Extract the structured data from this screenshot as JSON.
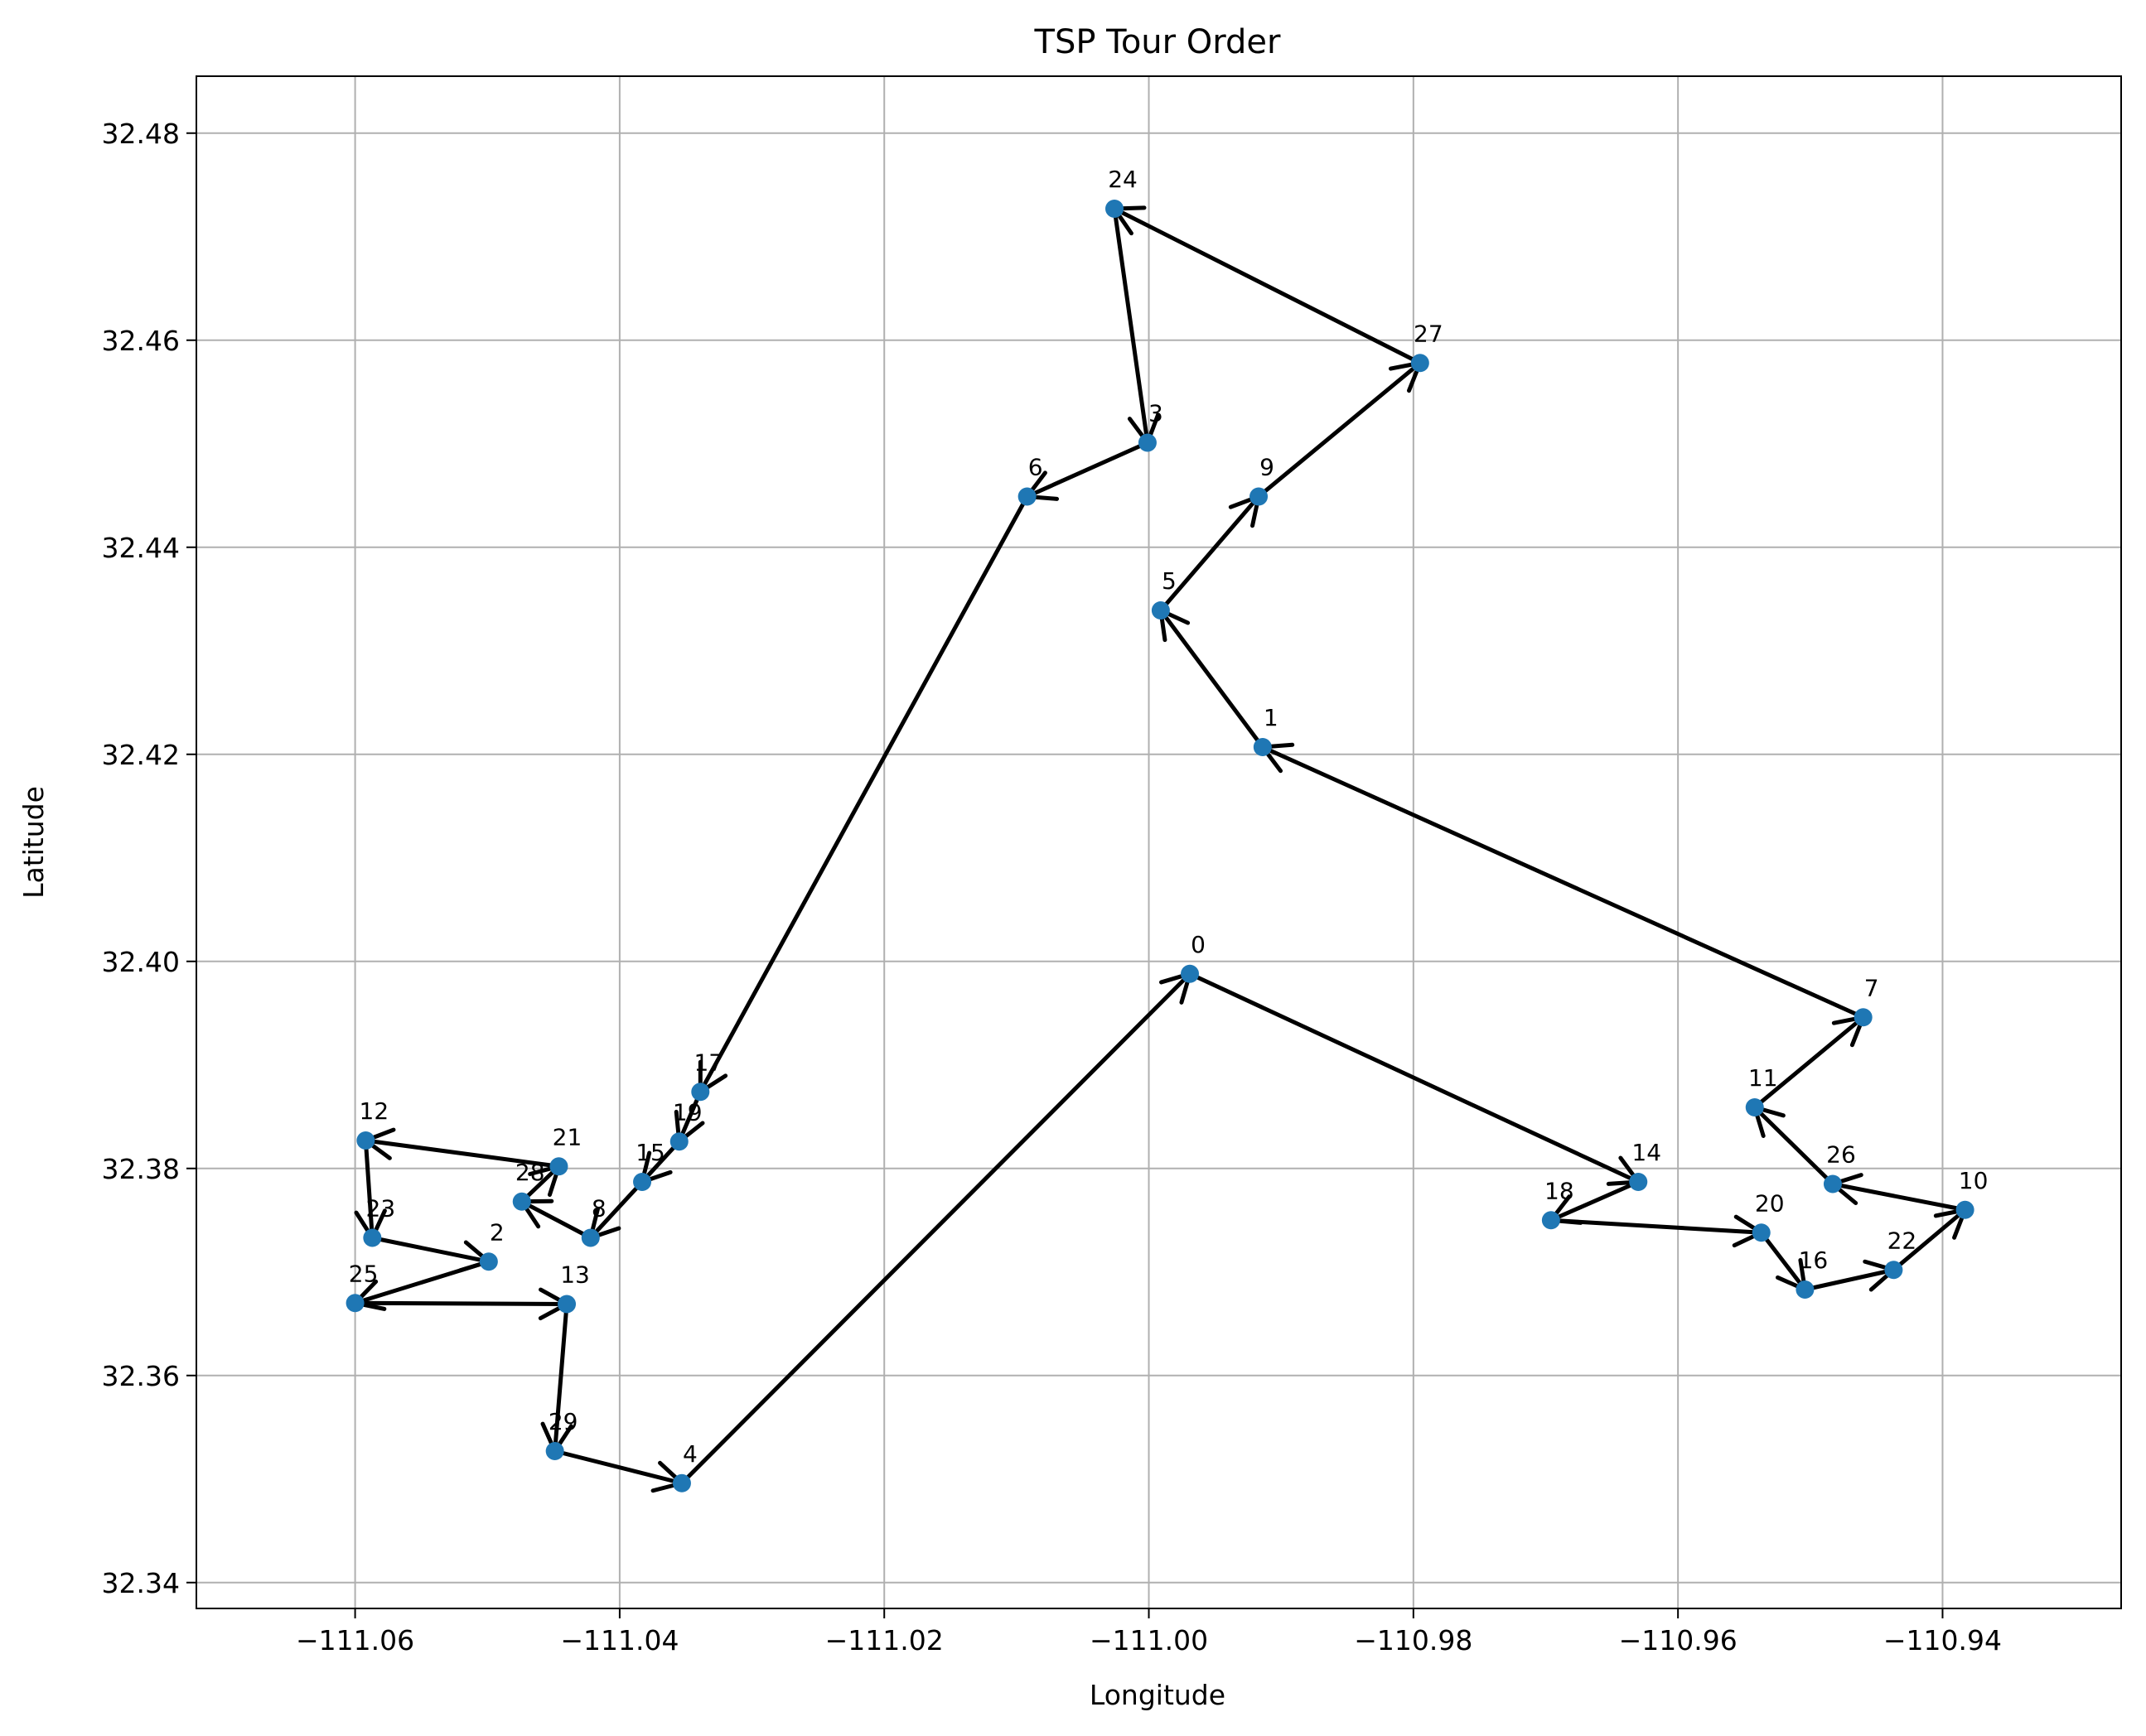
{
  "chart_data": {
    "type": "scatter",
    "title": "TSP Tour Order",
    "xlabel": "Longitude",
    "ylabel": "Latitude",
    "xlim": [
      -111.072,
      -110.9265
    ],
    "ylim": [
      32.3375,
      32.4855
    ],
    "xticks": [
      -111.06,
      -111.04,
      -111.02,
      -111.0,
      -110.98,
      -110.96,
      -110.94
    ],
    "xtick_labels": [
      "−111.06",
      "−111.04",
      "−111.02",
      "−111.00",
      "−110.98",
      "−110.96",
      "−110.94"
    ],
    "yticks": [
      32.34,
      32.36,
      32.38,
      32.4,
      32.42,
      32.44,
      32.46,
      32.48
    ],
    "ytick_labels": [
      "32.34",
      "32.36",
      "32.38",
      "32.40",
      "32.42",
      "32.44",
      "32.46",
      "32.48"
    ],
    "grid": true,
    "point_color": "#1f77b4",
    "arrow_color": "#000000",
    "points": [
      {
        "label": "0",
        "x": -110.9969,
        "y": 32.3988
      },
      {
        "label": "1",
        "x": -110.9914,
        "y": 32.4207
      },
      {
        "label": "2",
        "x": -111.0499,
        "y": 32.371
      },
      {
        "label": "3",
        "x": -111.0001,
        "y": 32.4501
      },
      {
        "label": "4",
        "x": -111.0353,
        "y": 32.3496
      },
      {
        "label": "5",
        "x": -110.9991,
        "y": 32.4339
      },
      {
        "label": "6",
        "x": -111.0092,
        "y": 32.4449
      },
      {
        "label": "7",
        "x": -110.946,
        "y": 32.3946
      },
      {
        "label": "8",
        "x": -111.0422,
        "y": 32.3733
      },
      {
        "label": "9",
        "x": -110.9917,
        "y": 32.4449
      },
      {
        "label": "10",
        "x": -110.9383,
        "y": 32.376
      },
      {
        "label": "11",
        "x": -110.9542,
        "y": 32.3859
      },
      {
        "label": "12",
        "x": -111.0592,
        "y": 32.3827
      },
      {
        "label": "13",
        "x": -111.044,
        "y": 32.3669
      },
      {
        "label": "14",
        "x": -110.963,
        "y": 32.3787
      },
      {
        "label": "15",
        "x": -111.0383,
        "y": 32.3787
      },
      {
        "label": "16",
        "x": -110.9504,
        "y": 32.3683
      },
      {
        "label": "17",
        "x": -111.0339,
        "y": 32.3874
      },
      {
        "label": "18",
        "x": -110.9696,
        "y": 32.375
      },
      {
        "label": "19",
        "x": -111.0355,
        "y": 32.3826
      },
      {
        "label": "20",
        "x": -110.9537,
        "y": 32.3738
      },
      {
        "label": "21",
        "x": -111.0446,
        "y": 32.3802
      },
      {
        "label": "22",
        "x": -110.9437,
        "y": 32.3702
      },
      {
        "label": "23",
        "x": -111.0587,
        "y": 32.3733
      },
      {
        "label": "24",
        "x": -111.0026,
        "y": 32.4727
      },
      {
        "label": "25",
        "x": -111.06,
        "y": 32.367
      },
      {
        "label": "26",
        "x": -110.9483,
        "y": 32.3785
      },
      {
        "label": "27",
        "x": -110.9795,
        "y": 32.4578
      },
      {
        "label": "28",
        "x": -111.0474,
        "y": 32.3768
      },
      {
        "label": "29",
        "x": -111.0449,
        "y": 32.3527
      }
    ],
    "tour": [
      0,
      14,
      18,
      20,
      16,
      22,
      10,
      26,
      11,
      7,
      1,
      5,
      9,
      27,
      24,
      3,
      6,
      17,
      19,
      15,
      8,
      28,
      21,
      12,
      23,
      2,
      25,
      13,
      29,
      4,
      0
    ]
  }
}
